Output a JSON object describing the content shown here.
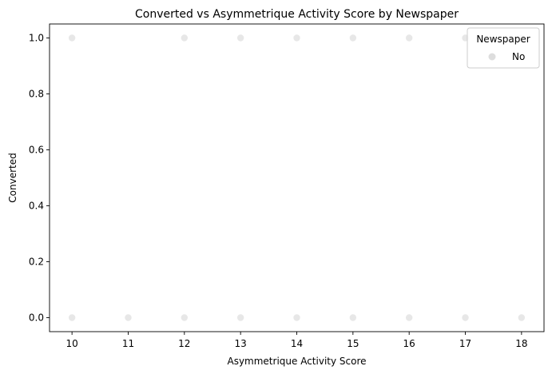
{
  "chart_data": {
    "type": "scatter",
    "title": "Converted vs Asymmetrique Activity Score by Newspaper",
    "xlabel": "Asymmetrique Activity Score",
    "ylabel": "Converted",
    "xlim": [
      9.6,
      18.4
    ],
    "ylim": [
      -0.05,
      1.05
    ],
    "xticks": [
      10,
      11,
      12,
      13,
      14,
      15,
      16,
      17,
      18
    ],
    "yticks": [
      0.0,
      0.2,
      0.4,
      0.6,
      0.8,
      1.0
    ],
    "xtick_labels": [
      "10",
      "11",
      "12",
      "13",
      "14",
      "15",
      "16",
      "17",
      "18"
    ],
    "ytick_labels": [
      "0.0",
      "0.2",
      "0.4",
      "0.6",
      "0.8",
      "1.0"
    ],
    "grid": false,
    "legend": {
      "title": "Newspaper",
      "placement": "top-right",
      "entries": [
        "No"
      ]
    },
    "series": [
      {
        "name": "No",
        "color": "#dddddd",
        "points": [
          {
            "x": 10,
            "y": 1
          },
          {
            "x": 12,
            "y": 1
          },
          {
            "x": 13,
            "y": 1
          },
          {
            "x": 14,
            "y": 1
          },
          {
            "x": 15,
            "y": 1
          },
          {
            "x": 16,
            "y": 1
          },
          {
            "x": 17,
            "y": 1
          },
          {
            "x": 18,
            "y": 1
          },
          {
            "x": 10,
            "y": 0
          },
          {
            "x": 11,
            "y": 0
          },
          {
            "x": 12,
            "y": 0
          },
          {
            "x": 13,
            "y": 0
          },
          {
            "x": 14,
            "y": 0
          },
          {
            "x": 15,
            "y": 0
          },
          {
            "x": 16,
            "y": 0
          },
          {
            "x": 17,
            "y": 0
          },
          {
            "x": 18,
            "y": 0
          }
        ]
      }
    ]
  }
}
